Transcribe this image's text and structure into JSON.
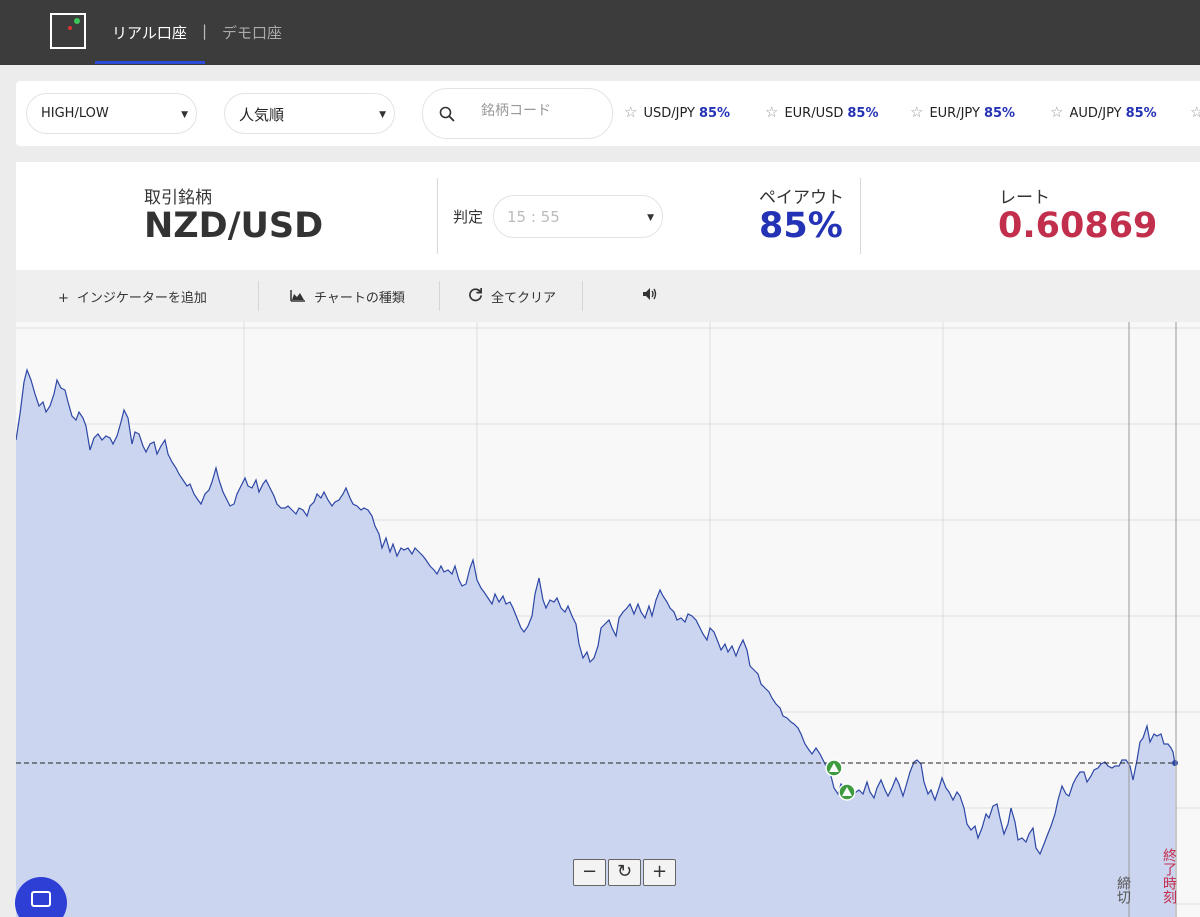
{
  "header": {
    "tabs": [
      {
        "label": "リアル口座",
        "active": true
      },
      {
        "label": "デモ口座",
        "active": false
      }
    ],
    "separator": "|"
  },
  "filters": {
    "option_type": "HIGH/LOW",
    "sort": "人気順",
    "search_placeholder": "銘柄コード",
    "favorites": [
      {
        "pair": "USD/JPY",
        "payout": "85%"
      },
      {
        "pair": "EUR/USD",
        "payout": "85%"
      },
      {
        "pair": "EUR/JPY",
        "payout": "85%"
      },
      {
        "pair": "AUD/JPY",
        "payout": "85%"
      }
    ]
  },
  "trade_info": {
    "asset_label": "取引銘柄",
    "asset": "NZD/USD",
    "judgement_label": "判定",
    "judgement_time": "15 : 55",
    "payout_label": "ペイアウト",
    "payout": "85%",
    "rate_label": "レート",
    "rate": "0.60869"
  },
  "toolbar": {
    "add_indicator": "インジケーターを追加",
    "chart_type": "チャートの種類",
    "clear_all": "全てクリア"
  },
  "chart": {
    "cutoff_label": "締切",
    "expiry_label": "終了時刻",
    "zoom_out": "−",
    "reset": "↻",
    "zoom_in": "+"
  },
  "colors": {
    "accent_blue": "#2433b5",
    "rate_red": "#c22f4d",
    "chart_fill": "#ccd5f0",
    "chart_line": "#2d47a5",
    "entry_marker": "#3d9a3d"
  }
}
